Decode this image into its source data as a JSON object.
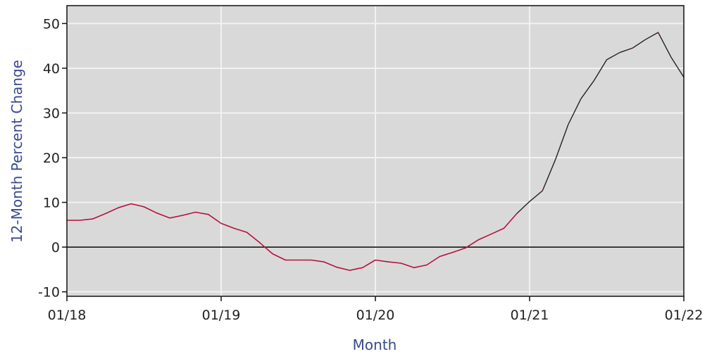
{
  "chart_data": {
    "type": "line",
    "title": "",
    "xlabel": "Month",
    "ylabel": "12-Month Percent Change",
    "ylim": [
      -11,
      54
    ],
    "xlim": [
      "2018-01",
      "2022-01"
    ],
    "yticks": [
      -10,
      0,
      10,
      20,
      30,
      40,
      50
    ],
    "xticks": [
      "01/18",
      "01/19",
      "01/20",
      "01/21",
      "01/22"
    ],
    "grid": true,
    "zero_line": true,
    "colors": {
      "plot_bg": "#d9d9d9",
      "grid": "#f2f2f2",
      "line": "#b5123e",
      "line_end": "#222222"
    },
    "series": [
      {
        "x": [
          "2018-01",
          "2018-02",
          "2018-03",
          "2018-04",
          "2018-05",
          "2018-06",
          "2018-07",
          "2018-08",
          "2018-09",
          "2018-10",
          "2018-11",
          "2018-12",
          "2019-01",
          "2019-02",
          "2019-03",
          "2019-04",
          "2019-05",
          "2019-06",
          "2019-07",
          "2019-08",
          "2019-09",
          "2019-10",
          "2019-11",
          "2019-12",
          "2020-01",
          "2020-02",
          "2020-03",
          "2020-04",
          "2020-05",
          "2020-06",
          "2020-07",
          "2020-08",
          "2020-09",
          "2020-10",
          "2020-11",
          "2020-12",
          "2021-01",
          "2021-02",
          "2021-03",
          "2021-04",
          "2021-05",
          "2021-06",
          "2021-07",
          "2021-08",
          "2021-09",
          "2021-10",
          "2021-11",
          "2021-12",
          "2022-01"
        ],
        "values": [
          6,
          6,
          6.3,
          7.5,
          8.8,
          9.7,
          9,
          7.6,
          6.5,
          7.1,
          7.8,
          7.3,
          5.3,
          4.2,
          3.3,
          1,
          -1.5,
          -2.9,
          -2.9,
          -2.9,
          -3.3,
          -4.5,
          -5.2,
          -4.6,
          -2.9,
          -3.3,
          -3.6,
          -4.6,
          -4,
          -2.1,
          -1.2,
          -0.2,
          1.6,
          2.9,
          4.2,
          7.5,
          10.2,
          12.6,
          19.5,
          27.4,
          33.2,
          37.2,
          41.9,
          43.5,
          44.5,
          46.4,
          48,
          42.5,
          38
        ]
      }
    ]
  }
}
